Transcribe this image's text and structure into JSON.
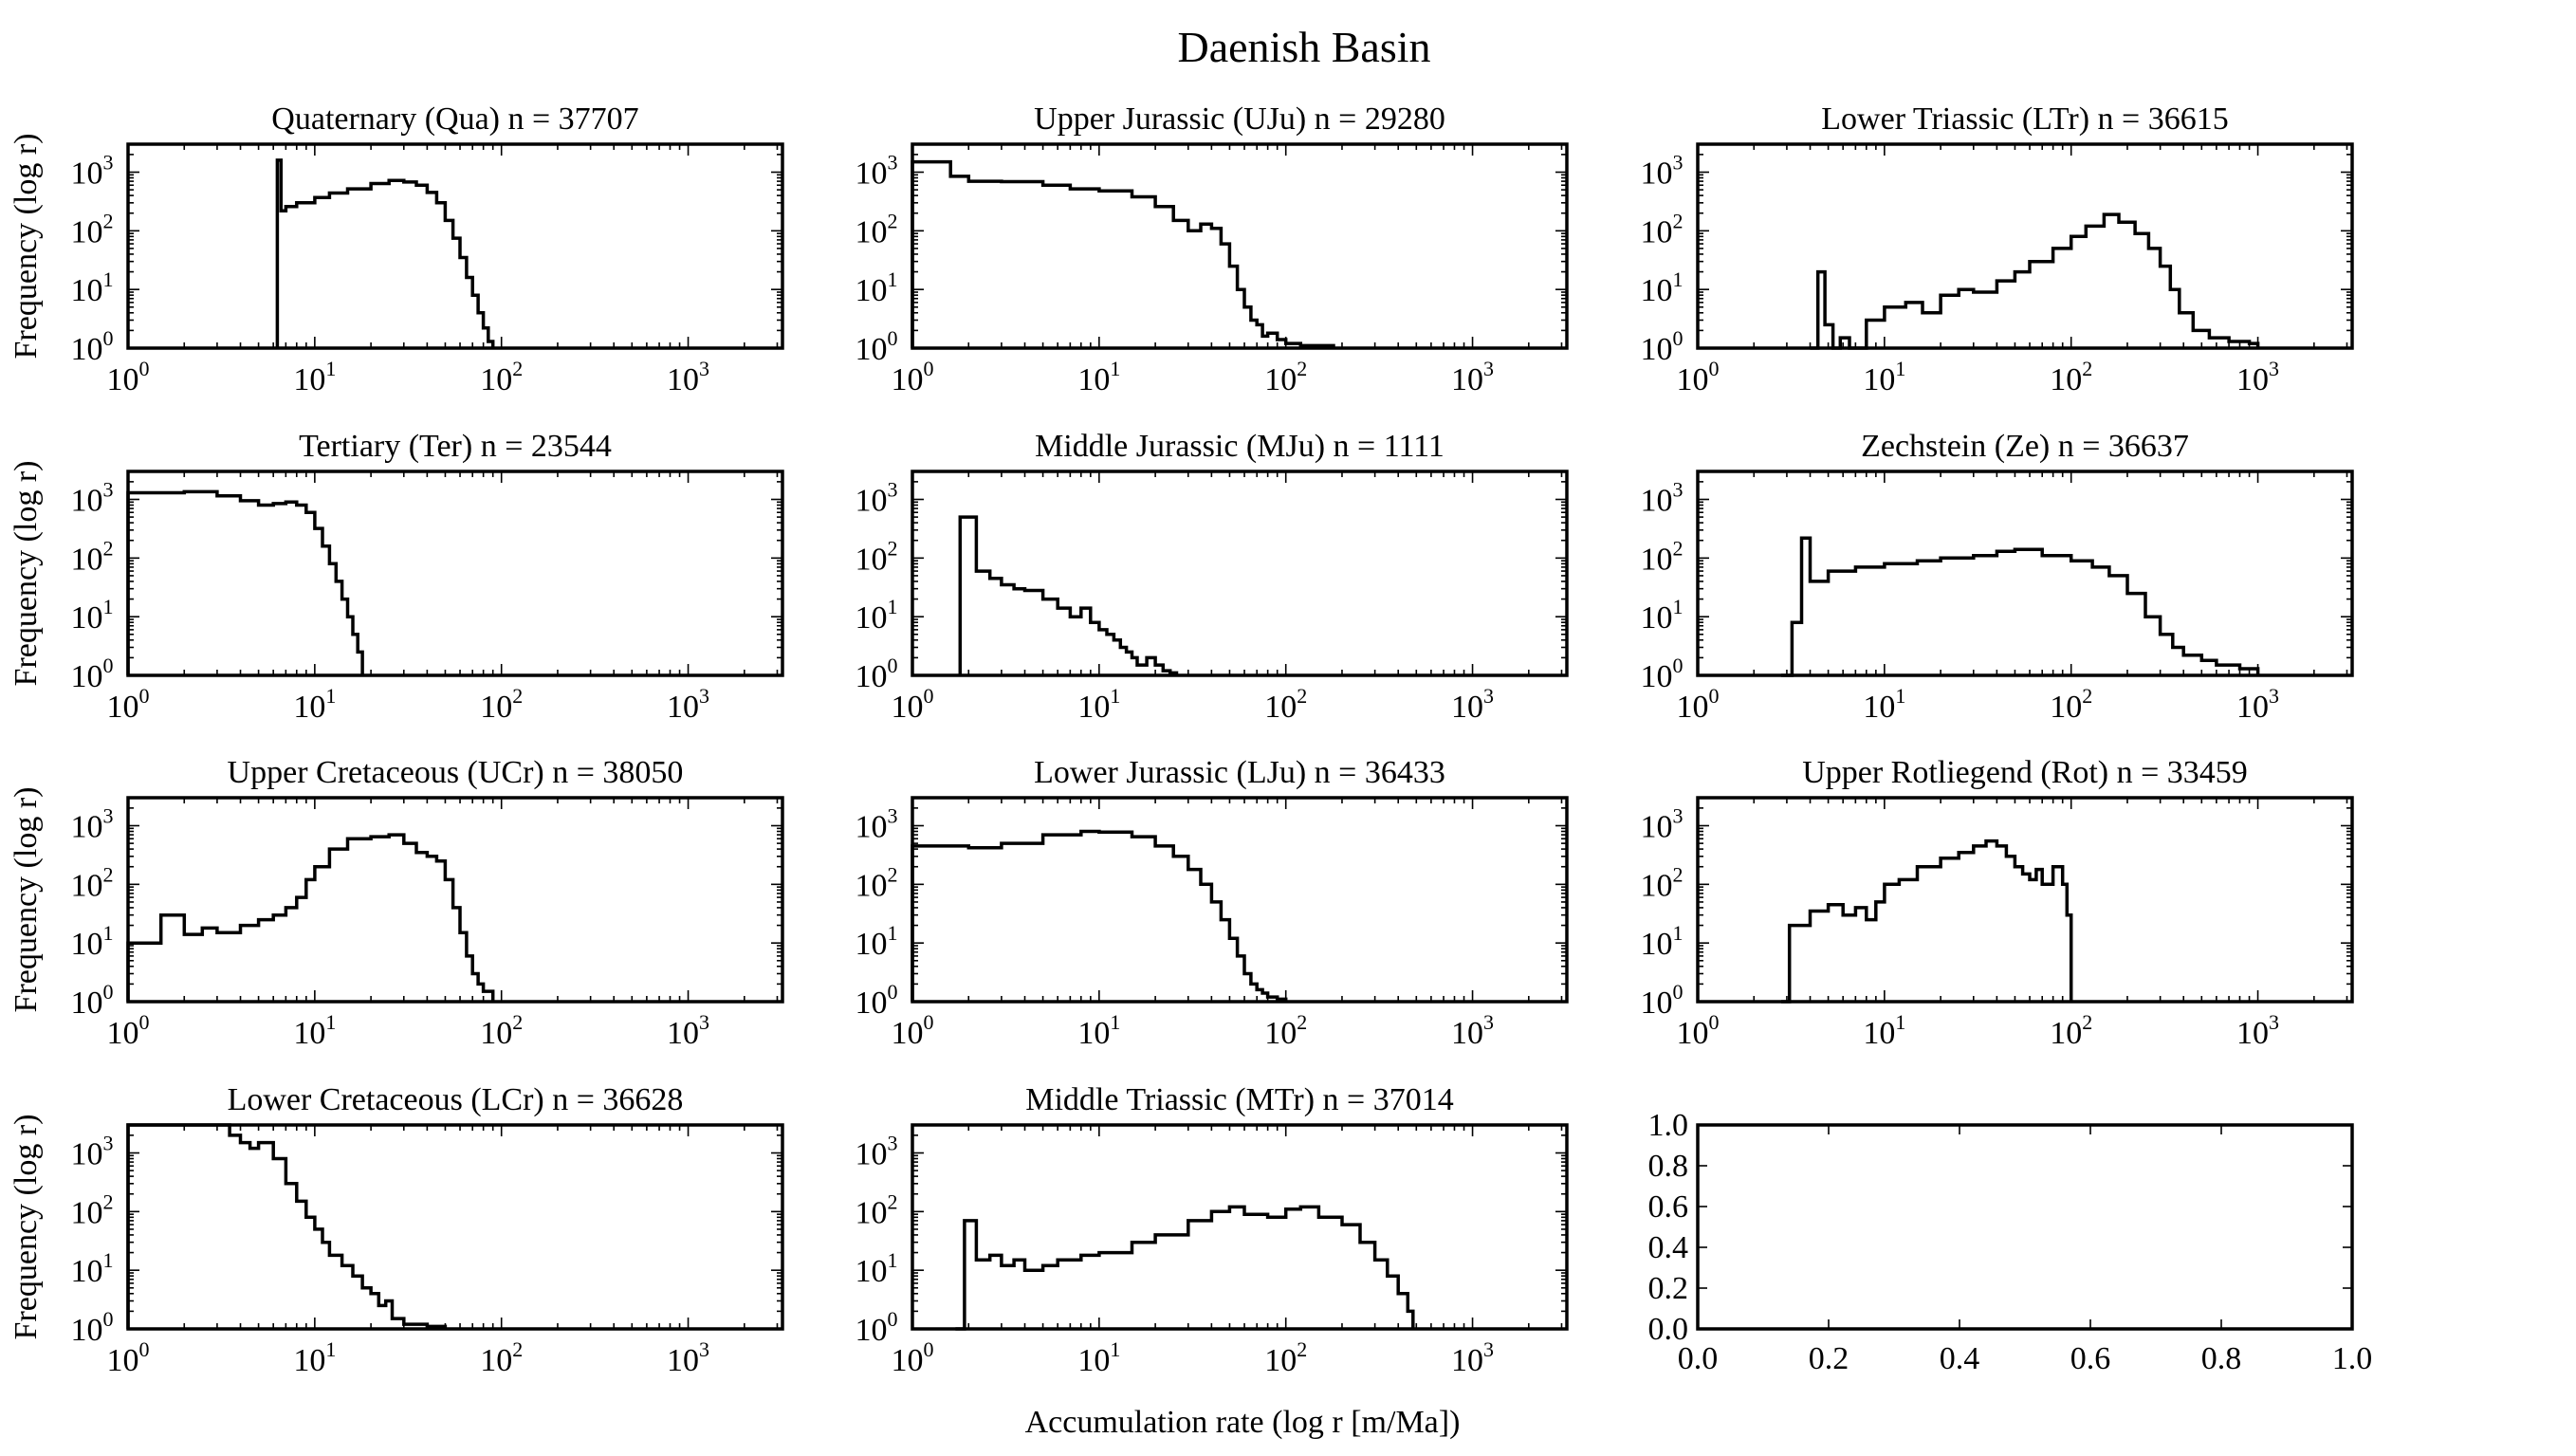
{
  "figure": {
    "suptitle": "Daenish Basin",
    "xlabel": "Accumulation rate (log r [m/Ma])",
    "ylabel": "Frequency (log r)"
  },
  "chart_data": [
    {
      "type": "histogram-step",
      "title": "Quaternary (Qua) n = 37707",
      "xscale": "log",
      "yscale": "log",
      "xlim": [
        1,
        3200
      ],
      "ylim": [
        1,
        3000
      ],
      "xticks": [
        1,
        10,
        100,
        1000
      ],
      "yticks": [
        1,
        10,
        100,
        1000
      ],
      "x": [
        6.3,
        6.6,
        7,
        8,
        10,
        12,
        15,
        20,
        25,
        30,
        35,
        40,
        45,
        50,
        55,
        60,
        65,
        70,
        75,
        80,
        85,
        90
      ],
      "y": [
        1600,
        220,
        260,
        300,
        370,
        440,
        520,
        640,
        720,
        680,
        600,
        450,
        300,
        150,
        75,
        35,
        16,
        8,
        4,
        2.2,
        1.3,
        1
      ]
    },
    {
      "type": "histogram-step",
      "title": "Upper Jurassic (UJu) n = 29280",
      "xscale": "log",
      "yscale": "log",
      "xlim": [
        1,
        3200
      ],
      "ylim": [
        1,
        3000
      ],
      "xticks": [
        1,
        10,
        100,
        1000
      ],
      "yticks": [
        1,
        10,
        100,
        1000
      ],
      "x": [
        1,
        1.6,
        2,
        3,
        5,
        7,
        10,
        15,
        20,
        25,
        30,
        35,
        40,
        45,
        50,
        55,
        60,
        65,
        70,
        75,
        80,
        90,
        100,
        120,
        150,
        180
      ],
      "y": [
        1500,
        850,
        700,
        690,
        600,
        520,
        480,
        380,
        260,
        150,
        100,
        130,
        110,
        60,
        25,
        10,
        5,
        3,
        2.5,
        1.6,
        1.8,
        1.4,
        1.2,
        1.1,
        1.1,
        1
      ]
    },
    {
      "type": "histogram-step",
      "title": "Lower Triassic (LTr) n = 36615",
      "xscale": "log",
      "yscale": "log",
      "xlim": [
        1,
        3200
      ],
      "ylim": [
        1,
        3000
      ],
      "xticks": [
        1,
        10,
        100,
        1000
      ],
      "yticks": [
        1,
        10,
        100,
        1000
      ],
      "x": [
        4,
        4.4,
        4.8,
        5.3,
        5.8,
        6.5,
        8,
        10,
        13,
        16,
        20,
        25,
        30,
        40,
        50,
        60,
        80,
        100,
        120,
        150,
        180,
        220,
        260,
        300,
        340,
        380,
        450,
        550,
        700,
        900,
        1000
      ],
      "y": [
        1,
        20,
        2.5,
        1,
        1.5,
        1,
        3,
        5,
        6,
        4,
        8,
        10,
        9,
        14,
        20,
        30,
        50,
        80,
        120,
        190,
        140,
        90,
        50,
        25,
        10,
        4,
        2,
        1.5,
        1.3,
        1.2,
        1
      ]
    },
    {
      "type": "histogram-step",
      "title": "Tertiary (Ter) n = 23544",
      "xscale": "log",
      "yscale": "log",
      "xlim": [
        1,
        3200
      ],
      "ylim": [
        1,
        3000
      ],
      "xticks": [
        1,
        10,
        100,
        1000
      ],
      "yticks": [
        1,
        10,
        100,
        1000
      ],
      "x": [
        1,
        2,
        3,
        4,
        5,
        6,
        7,
        8,
        9,
        10,
        11,
        12,
        13,
        14,
        15,
        16,
        17,
        18
      ],
      "y": [
        1300,
        1350,
        1150,
        950,
        800,
        850,
        900,
        800,
        600,
        320,
        160,
        80,
        40,
        20,
        10,
        5,
        2.5,
        1
      ]
    },
    {
      "type": "histogram-step",
      "title": "Middle Jurassic (MJu) n = 1111",
      "xscale": "log",
      "yscale": "log",
      "xlim": [
        1,
        3200
      ],
      "ylim": [
        1,
        3000
      ],
      "xticks": [
        1,
        10,
        100,
        1000
      ],
      "yticks": [
        1,
        10,
        100,
        1000
      ],
      "x": [
        1.8,
        2.2,
        2.6,
        3,
        3.5,
        4,
        5,
        6,
        7,
        8,
        9,
        10,
        11,
        12,
        13,
        14,
        15,
        16,
        18,
        20,
        22,
        24,
        26
      ],
      "y": [
        500,
        60,
        45,
        35,
        30,
        28,
        20,
        14,
        10,
        14,
        8,
        6,
        5,
        4,
        3,
        2.5,
        2,
        1.5,
        2,
        1.5,
        1.2,
        1.1,
        1
      ]
    },
    {
      "type": "histogram-step",
      "title": "Zechstein (Ze) n = 36637",
      "xscale": "log",
      "yscale": "log",
      "xlim": [
        1,
        3200
      ],
      "ylim": [
        1,
        3000
      ],
      "xticks": [
        1,
        10,
        100,
        1000
      ],
      "yticks": [
        1,
        10,
        100,
        1000
      ],
      "x": [
        2.8,
        3.2,
        3.6,
        4,
        5,
        7,
        10,
        15,
        20,
        30,
        40,
        50,
        70,
        100,
        130,
        160,
        200,
        250,
        300,
        350,
        400,
        500,
        600,
        800,
        1000
      ],
      "y": [
        1,
        8,
        220,
        40,
        60,
        70,
        80,
        90,
        100,
        110,
        130,
        140,
        110,
        90,
        70,
        50,
        25,
        10,
        5,
        3,
        2.2,
        1.8,
        1.5,
        1.3,
        1
      ]
    },
    {
      "type": "histogram-step",
      "title": "Upper Cretaceous (UCr) n = 38050",
      "xscale": "log",
      "yscale": "log",
      "xlim": [
        1,
        3200
      ],
      "ylim": [
        1,
        3000
      ],
      "xticks": [
        1,
        10,
        100,
        1000
      ],
      "yticks": [
        1,
        10,
        100,
        1000
      ],
      "x": [
        1,
        1.5,
        2,
        2.5,
        3,
        4,
        5,
        6,
        7,
        8,
        9,
        10,
        12,
        15,
        20,
        25,
        30,
        35,
        40,
        45,
        50,
        55,
        60,
        65,
        70,
        75,
        80,
        90
      ],
      "y": [
        10,
        30,
        14,
        18,
        15,
        20,
        25,
        30,
        40,
        60,
        120,
        200,
        400,
        600,
        650,
        700,
        500,
        350,
        300,
        250,
        120,
        40,
        15,
        6,
        3,
        2,
        1.5,
        1
      ]
    },
    {
      "type": "histogram-step",
      "title": "Lower Jurassic (LJu) n = 36433",
      "xscale": "log",
      "yscale": "log",
      "xlim": [
        1,
        3200
      ],
      "ylim": [
        1,
        3000
      ],
      "xticks": [
        1,
        10,
        100,
        1000
      ],
      "yticks": [
        1,
        10,
        100,
        1000
      ],
      "x": [
        1,
        2,
        3,
        5,
        8,
        10,
        15,
        20,
        25,
        30,
        35,
        40,
        45,
        50,
        55,
        60,
        65,
        70,
        75,
        80,
        90,
        100
      ],
      "y": [
        450,
        420,
        500,
        700,
        800,
        780,
        650,
        450,
        300,
        180,
        100,
        50,
        25,
        12,
        6,
        3,
        2,
        1.6,
        1.4,
        1.2,
        1.1,
        1
      ]
    },
    {
      "type": "histogram-step",
      "title": "Upper Rotliegend (Rot) n = 33459",
      "xscale": "log",
      "yscale": "log",
      "xlim": [
        1,
        3200
      ],
      "ylim": [
        1,
        3000
      ],
      "xticks": [
        1,
        10,
        100,
        1000
      ],
      "yticks": [
        1,
        10,
        100,
        1000
      ],
      "x": [
        2.8,
        3.1,
        4,
        5,
        6,
        7,
        8,
        9,
        10,
        12,
        15,
        20,
        25,
        30,
        35,
        40,
        45,
        50,
        55,
        60,
        65,
        70,
        80,
        90,
        95,
        100
      ],
      "y": [
        1,
        20,
        35,
        45,
        30,
        40,
        25,
        50,
        100,
        120,
        200,
        280,
        350,
        450,
        550,
        450,
        300,
        200,
        150,
        120,
        180,
        100,
        200,
        100,
        30,
        1
      ]
    },
    {
      "type": "histogram-step",
      "title": "Lower Cretaceous (LCr) n = 36628",
      "xscale": "log",
      "yscale": "log",
      "xlim": [
        1,
        3200
      ],
      "ylim": [
        1,
        3000
      ],
      "xticks": [
        1,
        10,
        100,
        1000
      ],
      "yticks": [
        1,
        10,
        100,
        1000
      ],
      "x": [
        1,
        2,
        3,
        3.5,
        4,
        4.5,
        5,
        6,
        7,
        8,
        9,
        10,
        11,
        12,
        14,
        16,
        18,
        20,
        22,
        24,
        26,
        30,
        40,
        50
      ],
      "y": [
        3000,
        3100,
        3000,
        2000,
        1500,
        1200,
        1500,
        800,
        300,
        150,
        80,
        50,
        30,
        18,
        12,
        8,
        5,
        4,
        2.5,
        3,
        1.5,
        1.2,
        1.1,
        1
      ]
    },
    {
      "type": "histogram-step",
      "title": "Middle Triassic (MTr) n = 37014",
      "xscale": "log",
      "yscale": "log",
      "xlim": [
        1,
        3200
      ],
      "ylim": [
        1,
        3000
      ],
      "xticks": [
        1,
        10,
        100,
        1000
      ],
      "yticks": [
        1,
        10,
        100,
        1000
      ],
      "x": [
        1.7,
        1.9,
        2.2,
        2.6,
        3,
        3.5,
        4,
        5,
        6,
        8,
        10,
        15,
        20,
        30,
        40,
        50,
        60,
        80,
        100,
        120,
        150,
        200,
        250,
        300,
        350,
        400,
        450,
        480
      ],
      "y": [
        1,
        70,
        15,
        18,
        12,
        15,
        10,
        12,
        15,
        18,
        20,
        30,
        40,
        70,
        100,
        120,
        90,
        80,
        110,
        120,
        80,
        60,
        30,
        15,
        8,
        4,
        2,
        1
      ]
    },
    {
      "type": "empty",
      "title": "",
      "xlim": [
        0,
        1
      ],
      "ylim": [
        0,
        1
      ],
      "xticks": [
        0.0,
        0.2,
        0.4,
        0.6,
        0.8,
        1.0
      ],
      "yticks": [
        0.0,
        0.2,
        0.4,
        0.6,
        0.8,
        1.0
      ],
      "xticklabels": [
        "0.0",
        "0.2",
        "0.4",
        "0.6",
        "0.8",
        "1.0"
      ],
      "yticklabels": [
        "0.0",
        "0.2",
        "0.4",
        "0.6",
        "0.8",
        "1.0"
      ]
    }
  ]
}
